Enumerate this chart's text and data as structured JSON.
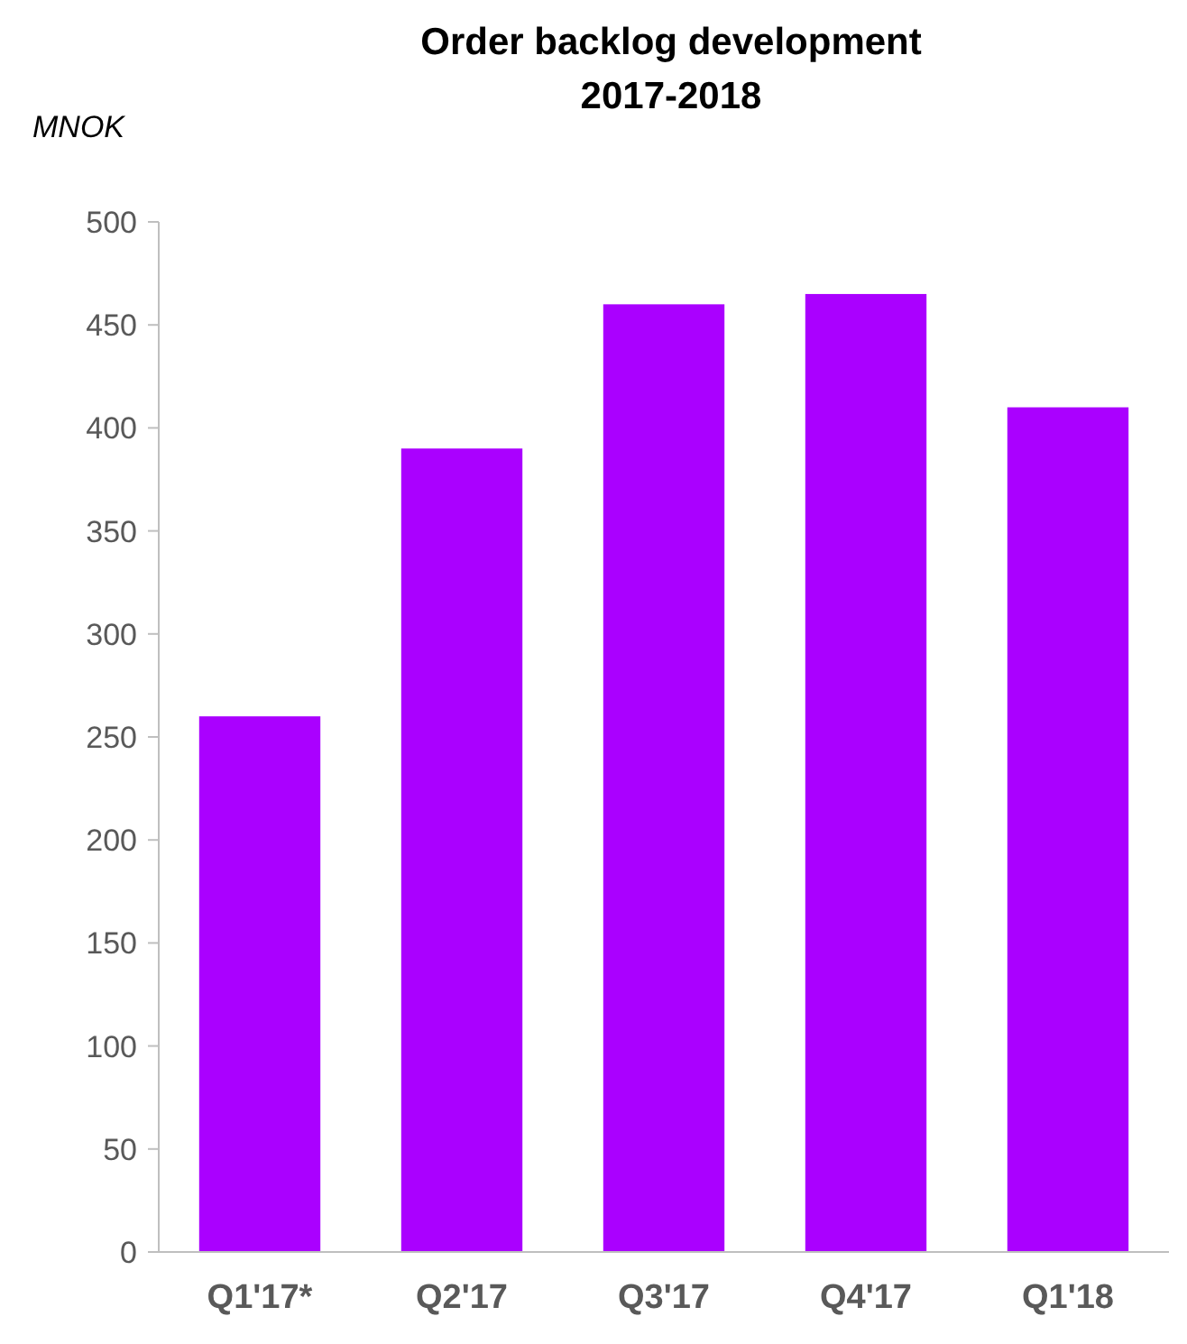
{
  "chart_data": {
    "type": "bar",
    "title": "Order backlog development\n2017-2018",
    "ylabel": "MNOK",
    "categories": [
      "Q1'17*",
      "Q2'17",
      "Q3'17",
      "Q4'17",
      "Q1'18"
    ],
    "values": [
      260,
      390,
      460,
      465,
      410
    ],
    "color": "#aa00ff",
    "ylim": [
      0,
      500
    ],
    "yticks": [
      0,
      50,
      100,
      150,
      200,
      250,
      300,
      350,
      400,
      450,
      500
    ],
    "grid": false
  }
}
